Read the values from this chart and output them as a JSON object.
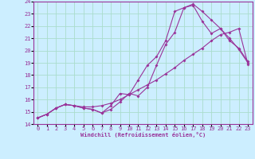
{
  "xlabel": "Windchill (Refroidissement éolien,°C)",
  "bg_color": "#cceeff",
  "grid_color": "#aaddcc",
  "line_color": "#993399",
  "xlim": [
    -0.5,
    23.5
  ],
  "ylim": [
    14,
    24
  ],
  "xticks": [
    0,
    1,
    2,
    3,
    4,
    5,
    6,
    7,
    8,
    9,
    10,
    11,
    12,
    13,
    14,
    15,
    16,
    17,
    18,
    19,
    20,
    21,
    22,
    23
  ],
  "yticks": [
    14,
    15,
    16,
    17,
    18,
    19,
    20,
    21,
    22,
    23,
    24
  ],
  "line1_x": [
    0,
    1,
    2,
    3,
    4,
    5,
    6,
    7,
    8,
    9,
    10,
    11,
    12,
    13,
    14,
    15,
    16,
    17,
    18,
    19,
    20,
    21,
    22,
    23
  ],
  "line1_y": [
    14.5,
    14.8,
    15.3,
    15.6,
    15.5,
    15.4,
    15.4,
    15.5,
    15.7,
    16.0,
    16.4,
    16.8,
    17.2,
    17.6,
    18.1,
    18.6,
    19.2,
    19.7,
    20.2,
    20.8,
    21.3,
    21.5,
    21.8,
    18.9
  ],
  "line2_x": [
    0,
    1,
    2,
    3,
    4,
    5,
    6,
    7,
    8,
    9,
    10,
    11,
    12,
    13,
    14,
    15,
    16,
    17,
    18,
    19,
    20,
    21,
    22,
    23
  ],
  "line2_y": [
    14.5,
    14.8,
    15.3,
    15.6,
    15.5,
    15.3,
    15.2,
    14.9,
    15.5,
    16.5,
    16.4,
    17.6,
    18.8,
    19.5,
    20.8,
    23.2,
    23.5,
    23.7,
    22.4,
    21.4,
    21.8,
    20.8,
    20.2,
    19.1
  ],
  "line3_x": [
    0,
    1,
    2,
    3,
    4,
    5,
    6,
    7,
    8,
    9,
    10,
    11,
    12,
    13,
    14,
    15,
    16,
    17,
    18,
    19,
    20,
    21,
    22,
    23
  ],
  "line3_y": [
    14.5,
    14.8,
    15.3,
    15.6,
    15.5,
    15.3,
    15.2,
    14.9,
    15.2,
    15.8,
    16.5,
    16.3,
    17.0,
    18.8,
    20.5,
    21.5,
    23.5,
    23.8,
    23.2,
    22.5,
    21.8,
    21.0,
    20.1,
    19.0
  ]
}
